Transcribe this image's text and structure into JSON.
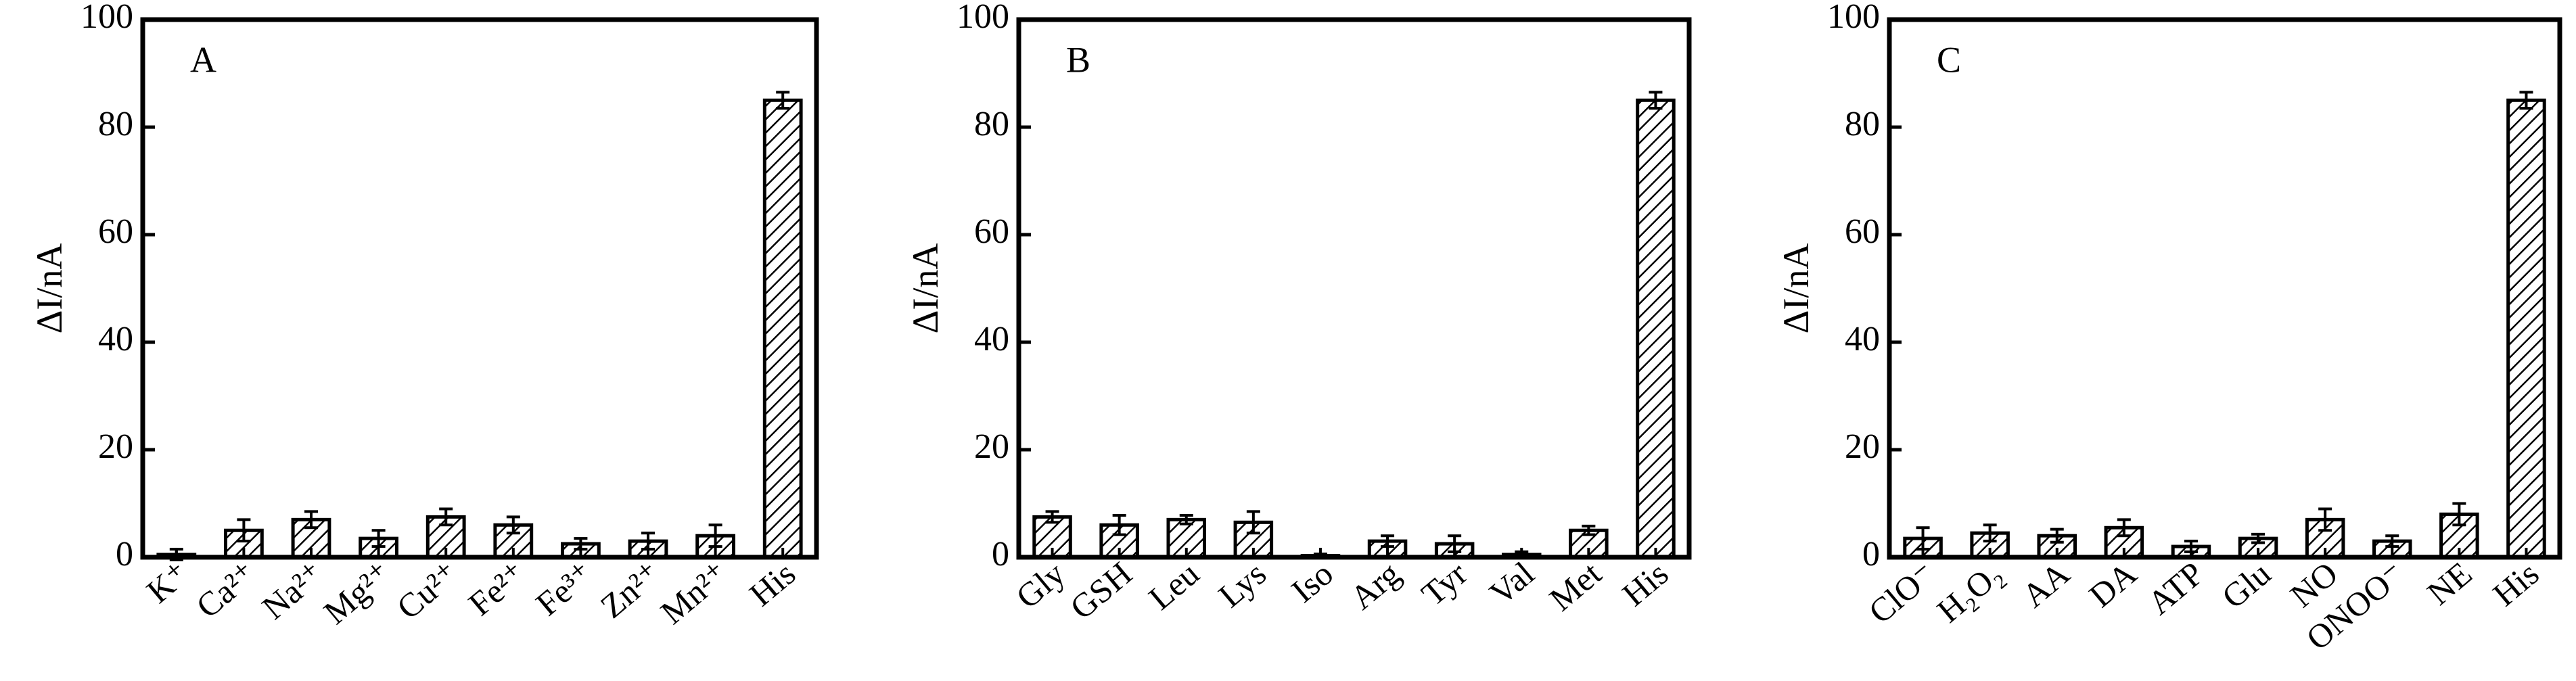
{
  "chart_data": [
    {
      "type": "bar",
      "title": "A",
      "y_label": "ΔI/nA",
      "color": "#000000",
      "hatch": true,
      "categories": [
        "K⁺",
        "Ca²⁺",
        "Na²⁺",
        "Mg²⁺",
        "Cu²⁺",
        "Fe²⁺",
        "Fe³⁺",
        "Zn²⁺",
        "Mn²⁺",
        "His"
      ],
      "values": [
        0.5,
        5,
        7,
        3.5,
        7.5,
        6,
        2.5,
        3,
        4,
        85
      ],
      "errors": [
        1,
        2,
        1.5,
        1.5,
        1.5,
        1.5,
        1,
        1.5,
        2,
        1.5
      ],
      "ylim": [
        0,
        100
      ],
      "yticks": [
        0,
        20,
        40,
        60,
        80,
        100
      ]
    },
    {
      "type": "bar",
      "title": "B",
      "y_label": "ΔI/nA",
      "color": "#000000",
      "hatch": true,
      "categories": [
        "Gly",
        "GSH",
        "Leu",
        "Lys",
        "Iso",
        "Arg",
        "Tyr",
        "Val",
        "Met",
        "His"
      ],
      "values": [
        7.5,
        6,
        7,
        6.5,
        0.3,
        3,
        2.5,
        0.5,
        5,
        85
      ],
      "errors": [
        1,
        1.8,
        0.8,
        2,
        0.3,
        1,
        1.5,
        0.5,
        0.8,
        1.5
      ],
      "ylim": [
        0,
        100
      ],
      "yticks": [
        0,
        20,
        40,
        60,
        80,
        100
      ]
    },
    {
      "type": "bar",
      "title": "C",
      "y_label": "ΔI/nA",
      "color": "#000000",
      "hatch": true,
      "categories": [
        "ClO⁻",
        "H₂O₂",
        "AA",
        "DA",
        "ATP",
        "Glu",
        "NO",
        "ONOO⁻",
        "NE",
        "His"
      ],
      "values": [
        3.5,
        4.5,
        4,
        5.5,
        2,
        3.5,
        7,
        3,
        8,
        85
      ],
      "errors": [
        2,
        1.5,
        1.2,
        1.5,
        1,
        0.8,
        2,
        1,
        2,
        1.5
      ],
      "ylim": [
        0,
        100
      ],
      "yticks": [
        0,
        20,
        40,
        60,
        80,
        100
      ]
    }
  ]
}
